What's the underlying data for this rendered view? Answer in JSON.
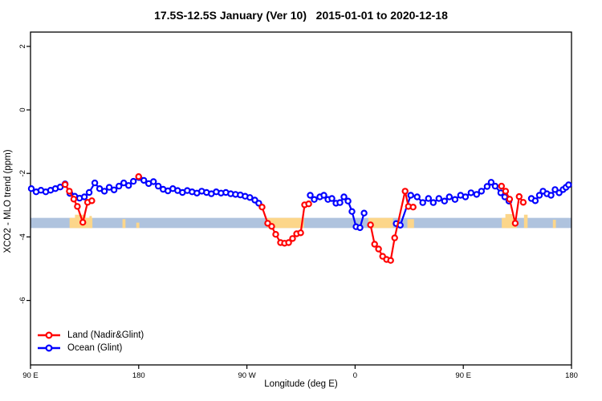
{
  "title": "17.5S-12.5S January (Ver 10)   2015-01-01 to 2020-12-18",
  "colors": {
    "land": "#ff0000",
    "ocean": "#0000ff",
    "band": "#afc3de",
    "shade": "#fcd68a",
    "axis": "#000000"
  },
  "chart_data": {
    "type": "line",
    "title": "17.5S-12.5S January (Ver 10)   2015-01-01 to 2020-12-18",
    "xlabel": "Longitude (deg E)",
    "ylabel": "XCO2 - MLO trend (ppm)",
    "xlim": [
      90,
      540
    ],
    "ylim": [
      -8.03,
      2.45
    ],
    "grid": false,
    "legend_position": "bottom-left",
    "x_ticks": [
      {
        "v": 90,
        "label": "90 E"
      },
      {
        "v": 180,
        "label": "180"
      },
      {
        "v": 270,
        "label": "90 W"
      },
      {
        "v": 360,
        "label": "0"
      },
      {
        "v": 450,
        "label": "90 E"
      },
      {
        "v": 540,
        "label": "180"
      }
    ],
    "y_ticks": [
      {
        "v": 2,
        "label": "2"
      },
      {
        "v": 0,
        "label": "0"
      },
      {
        "v": -2,
        "label": "-2"
      },
      {
        "v": -4,
        "label": "-4"
      },
      {
        "v": -6,
        "label": "-6"
      }
    ],
    "band": {
      "top": -3.4,
      "bottom": -3.72
    },
    "shaded": [
      {
        "from": 122.5,
        "to": 141.5,
        "top": -3.4
      },
      {
        "from": 127.0,
        "to": 136.0,
        "top": -3.3
      },
      {
        "from": 139.0,
        "to": 141.0,
        "top": -3.34
      },
      {
        "from": 166.5,
        "to": 169.0,
        "top": -3.44
      },
      {
        "from": 178.0,
        "to": 180.5,
        "top": -3.55
      },
      {
        "from": 287.0,
        "to": 317.5,
        "top": -3.4
      },
      {
        "from": 371.0,
        "to": 391.5,
        "top": -3.4
      },
      {
        "from": 403.5,
        "to": 409.0,
        "top": -3.44
      },
      {
        "from": 482.0,
        "to": 494.5,
        "top": -3.4
      },
      {
        "from": 485.0,
        "to": 491.0,
        "top": -3.28
      },
      {
        "from": 500.5,
        "to": 503.5,
        "top": -3.3
      },
      {
        "from": 524.5,
        "to": 527.0,
        "top": -3.46
      }
    ],
    "series": [
      {
        "name": "Land (Nadir&Glint)",
        "color_key": "land",
        "segments": [
          [
            [
              118.8,
              -2.35
            ],
            [
              122.3,
              -2.56
            ],
            [
              126.0,
              -2.81
            ],
            [
              129.0,
              -3.04
            ],
            [
              133.5,
              -3.54
            ],
            [
              137.5,
              -2.91
            ],
            [
              141.0,
              -2.86
            ]
          ],
          [
            [
              179.9,
              -2.1
            ]
          ],
          [
            [
              282.6,
              -3.06
            ],
            [
              287.3,
              -3.57
            ],
            [
              290.6,
              -3.67
            ],
            [
              294.0,
              -3.92
            ],
            [
              298.0,
              -4.18
            ],
            [
              301.3,
              -4.2
            ],
            [
              304.7,
              -4.18
            ],
            [
              308.0,
              -4.05
            ],
            [
              311.4,
              -3.9
            ],
            [
              314.7,
              -3.87
            ],
            [
              318.0,
              -2.99
            ],
            [
              321.4,
              -2.96
            ]
          ],
          [
            [
              372.8,
              -3.62
            ],
            [
              376.2,
              -4.23
            ],
            [
              379.5,
              -4.38
            ],
            [
              382.9,
              -4.61
            ],
            [
              386.2,
              -4.71
            ],
            [
              389.6,
              -4.74
            ],
            [
              392.9,
              -4.03
            ],
            [
              401.6,
              -2.56
            ],
            [
              404.3,
              -3.04
            ],
            [
              408.3,
              -3.06
            ]
          ],
          [
            [
              481.8,
              -2.4
            ],
            [
              485.2,
              -2.56
            ],
            [
              488.5,
              -2.81
            ],
            [
              493.2,
              -3.57
            ],
            [
              496.5,
              -2.73
            ],
            [
              499.9,
              -2.91
            ]
          ]
        ]
      },
      {
        "name": "Ocean (Glint)",
        "color_key": "ocean",
        "segments": [
          [
            [
              90.7,
              -2.48
            ],
            [
              94.7,
              -2.58
            ],
            [
              98.7,
              -2.53
            ],
            [
              102.7,
              -2.58
            ],
            [
              106.7,
              -2.53
            ],
            [
              110.7,
              -2.48
            ],
            [
              114.7,
              -2.43
            ],
            [
              118.8,
              -2.33
            ],
            [
              122.8,
              -2.63
            ],
            [
              126.8,
              -2.72
            ],
            [
              130.8,
              -2.78
            ],
            [
              134.8,
              -2.74
            ],
            [
              138.8,
              -2.6
            ],
            [
              143.5,
              -2.3
            ],
            [
              147.5,
              -2.48
            ],
            [
              151.5,
              -2.56
            ],
            [
              155.5,
              -2.44
            ],
            [
              159.5,
              -2.52
            ],
            [
              163.6,
              -2.4
            ],
            [
              167.6,
              -2.3
            ],
            [
              171.6,
              -2.38
            ],
            [
              175.6,
              -2.25
            ],
            [
              180.3,
              -2.13
            ],
            [
              184.3,
              -2.22
            ],
            [
              188.3,
              -2.32
            ],
            [
              192.3,
              -2.26
            ],
            [
              196.3,
              -2.4
            ],
            [
              200.3,
              -2.5
            ],
            [
              204.3,
              -2.55
            ],
            [
              208.4,
              -2.48
            ],
            [
              212.4,
              -2.54
            ],
            [
              216.4,
              -2.6
            ],
            [
              220.4,
              -2.54
            ],
            [
              224.4,
              -2.58
            ],
            [
              228.4,
              -2.62
            ],
            [
              232.4,
              -2.56
            ],
            [
              236.4,
              -2.6
            ],
            [
              240.4,
              -2.64
            ],
            [
              244.5,
              -2.58
            ],
            [
              248.5,
              -2.62
            ],
            [
              252.5,
              -2.6
            ],
            [
              256.5,
              -2.64
            ],
            [
              260.5,
              -2.66
            ],
            [
              264.5,
              -2.68
            ],
            [
              268.5,
              -2.72
            ],
            [
              272.5,
              -2.76
            ],
            [
              276.6,
              -2.84
            ],
            [
              279.9,
              -2.94
            ]
          ],
          [
            [
              322.7,
              -2.69
            ],
            [
              326.0,
              -2.82
            ],
            [
              330.7,
              -2.74
            ],
            [
              334.0,
              -2.69
            ],
            [
              337.4,
              -2.82
            ],
            [
              340.7,
              -2.79
            ],
            [
              344.1,
              -2.94
            ],
            [
              347.4,
              -2.92
            ],
            [
              350.7,
              -2.74
            ],
            [
              354.1,
              -2.87
            ],
            [
              357.4,
              -3.2
            ],
            [
              360.8,
              -3.68
            ],
            [
              364.1,
              -3.71
            ],
            [
              367.5,
              -3.25
            ]
          ],
          [
            [
              394.2,
              -3.58
            ],
            [
              397.6,
              -3.63
            ],
            [
              406.3,
              -2.69
            ],
            [
              411.6,
              -2.74
            ],
            [
              416.3,
              -2.92
            ],
            [
              421.0,
              -2.79
            ],
            [
              425.0,
              -2.92
            ],
            [
              429.7,
              -2.79
            ],
            [
              434.4,
              -2.87
            ],
            [
              438.4,
              -2.74
            ],
            [
              443.1,
              -2.82
            ],
            [
              447.7,
              -2.69
            ],
            [
              451.8,
              -2.74
            ],
            [
              456.4,
              -2.61
            ],
            [
              461.1,
              -2.66
            ],
            [
              465.1,
              -2.56
            ],
            [
              469.8,
              -2.41
            ],
            [
              473.2,
              -2.28
            ],
            [
              476.5,
              -2.4
            ],
            [
              481.2,
              -2.61
            ],
            [
              484.5,
              -2.74
            ],
            [
              487.9,
              -2.87
            ]
          ],
          [
            [
              506.6,
              -2.79
            ],
            [
              509.9,
              -2.86
            ],
            [
              513.3,
              -2.69
            ],
            [
              516.3,
              -2.56
            ],
            [
              519.6,
              -2.64
            ],
            [
              523.0,
              -2.69
            ],
            [
              526.3,
              -2.51
            ],
            [
              529.7,
              -2.61
            ],
            [
              533.0,
              -2.51
            ],
            [
              535.4,
              -2.44
            ],
            [
              537.6,
              -2.36
            ]
          ]
        ]
      }
    ],
    "legend": [
      "Land (Nadir&Glint)",
      "Ocean (Glint)"
    ]
  }
}
